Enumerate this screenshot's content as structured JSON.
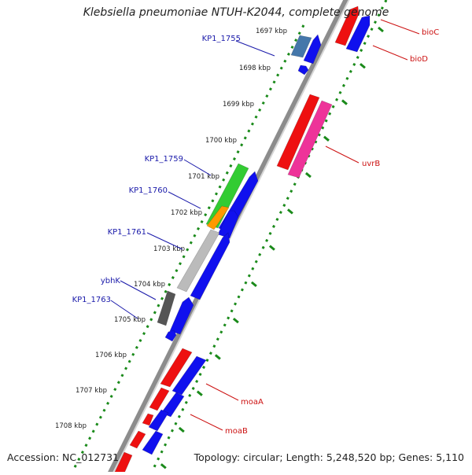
{
  "title": "Klebsiella pneumoniae NTUH-K2044, complete genome",
  "accession": "Accession: NC_012731",
  "topology": "Topology: circular; Length: 5,248,520 bp; Genes: 5,110",
  "ticks": [
    "1697 kbp",
    "1698 kbp",
    "1699 kbp",
    "1700 kbp",
    "1701 kbp",
    "1702 kbp",
    "1703 kbp",
    "1704 kbp",
    "1705 kbp",
    "1706 kbp",
    "1707 kbp",
    "1708 kbp"
  ],
  "gene_labels_left": [
    "KP1_1755",
    "KP1_1759",
    "KP1_1760",
    "KP1_1761",
    "ybhK",
    "KP1_1763"
  ],
  "gene_labels_right": [
    "bioC",
    "bioD",
    "uvrB",
    "moaA",
    "moaB"
  ],
  "colors": {
    "backbone": "#8c8c8c",
    "ticks": "#1a8a1a",
    "forward_cds": "#1010ee",
    "reverse_red": "#ee1010",
    "reverse_pink": "#ee3399",
    "green_gene": "#33cc33",
    "orange_gene": "#ff9900",
    "steel_gene": "#4477aa",
    "gray_gene": "#bbbbbb",
    "dark_gene": "#555555",
    "left_label": "#1a1aaa",
    "right_label": "#cc1111"
  }
}
